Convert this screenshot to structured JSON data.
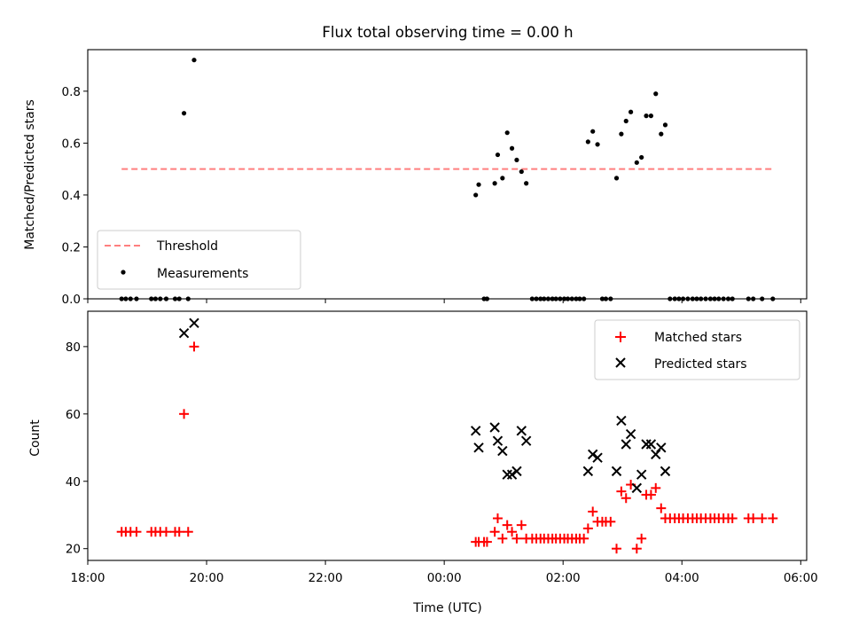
{
  "chart_data": [
    {
      "type": "scatter",
      "title": "Flux total observing time = 0.00 h",
      "ylabel": "Matched/Predicted stars",
      "xlabel": "",
      "xlim": [
        -6,
        6.1
      ],
      "ylim": [
        0,
        0.96
      ],
      "yticks": [
        {
          "value": 0.0,
          "label": "0.0"
        },
        {
          "value": 0.2,
          "label": "0.2"
        },
        {
          "value": 0.4,
          "label": "0.4"
        },
        {
          "value": 0.6,
          "label": "0.6"
        },
        {
          "value": 0.8,
          "label": "0.8"
        }
      ],
      "xticks": [
        -6,
        -4,
        -2,
        0,
        2,
        4,
        6
      ],
      "legend": {
        "position": "lower-left"
      },
      "series": [
        {
          "name": "Threshold",
          "style": "dashed-line",
          "color": "#ff7f7f",
          "x": [
            -5.43,
            5.53
          ],
          "y": [
            0.5,
            0.5
          ]
        },
        {
          "name": "Measurements",
          "style": "dot",
          "color": "#000000",
          "x": [
            -5.43,
            -5.36,
            -5.28,
            -5.18,
            -4.93,
            -4.86,
            -4.78,
            -4.68,
            -4.53,
            -4.46,
            -4.38,
            -4.31,
            -4.21,
            0.53,
            0.58,
            0.67,
            0.72,
            0.85,
            0.9,
            0.98,
            1.06,
            1.14,
            1.22,
            1.3,
            1.38,
            1.48,
            1.55,
            1.62,
            1.68,
            1.75,
            1.82,
            1.88,
            1.95,
            2.02,
            2.08,
            2.15,
            2.22,
            2.28,
            2.35,
            2.42,
            2.5,
            2.58,
            2.66,
            2.72,
            2.8,
            2.9,
            2.98,
            3.06,
            3.14,
            3.24,
            3.32,
            3.4,
            3.48,
            3.56,
            3.65,
            3.72,
            3.8,
            3.88,
            3.95,
            4.02,
            4.1,
            4.18,
            4.25,
            4.32,
            4.4,
            4.48,
            4.55,
            4.62,
            4.7,
            4.78,
            4.85,
            5.12,
            5.2,
            5.35,
            5.53
          ],
          "y": [
            0,
            0,
            0,
            0,
            0,
            0,
            0,
            0,
            0,
            0,
            0.715,
            0,
            0.92,
            0.4,
            0.44,
            0,
            0,
            0.445,
            0.555,
            0.465,
            0.64,
            0.58,
            0.535,
            0.49,
            0.445,
            0,
            0,
            0,
            0,
            0,
            0,
            0,
            0,
            0,
            0,
            0,
            0,
            0,
            0,
            0.605,
            0.645,
            0.595,
            0,
            0,
            0,
            0.465,
            0.635,
            0.685,
            0.72,
            0.525,
            0.545,
            0.705,
            0.705,
            0.79,
            0.635,
            0.67,
            0,
            0,
            0,
            0,
            0,
            0,
            0,
            0,
            0,
            0,
            0,
            0,
            0,
            0,
            0,
            0,
            0,
            0,
            0
          ]
        }
      ]
    },
    {
      "type": "scatter",
      "title": "",
      "ylabel": "Count",
      "xlabel": "Time (UTC)",
      "xlim": [
        -6,
        6.1
      ],
      "ylim": [
        16.5,
        90.5
      ],
      "yticks": [
        {
          "value": 20,
          "label": "20"
        },
        {
          "value": 40,
          "label": "40"
        },
        {
          "value": 60,
          "label": "60"
        },
        {
          "value": 80,
          "label": "80"
        }
      ],
      "xticks": [
        {
          "value": -6,
          "label": "18:00"
        },
        {
          "value": -4,
          "label": "20:00"
        },
        {
          "value": -2,
          "label": "22:00"
        },
        {
          "value": 0,
          "label": "00:00"
        },
        {
          "value": 2,
          "label": "02:00"
        },
        {
          "value": 4,
          "label": "04:00"
        },
        {
          "value": 6,
          "label": "06:00"
        }
      ],
      "legend": {
        "position": "upper-right"
      },
      "series": [
        {
          "name": "Matched stars",
          "marker": "+",
          "color": "#ff0000",
          "x": [
            -5.43,
            -5.36,
            -5.28,
            -5.18,
            -4.93,
            -4.86,
            -4.78,
            -4.68,
            -4.53,
            -4.46,
            -4.38,
            -4.31,
            -4.21,
            0.53,
            0.58,
            0.67,
            0.72,
            0.85,
            0.9,
            0.98,
            1.06,
            1.14,
            1.22,
            1.3,
            1.38,
            1.48,
            1.55,
            1.62,
            1.68,
            1.75,
            1.82,
            1.88,
            1.95,
            2.02,
            2.08,
            2.15,
            2.22,
            2.28,
            2.35,
            2.42,
            2.5,
            2.58,
            2.66,
            2.72,
            2.8,
            2.9,
            2.98,
            3.06,
            3.14,
            3.24,
            3.32,
            3.4,
            3.48,
            3.56,
            3.65,
            3.72,
            3.8,
            3.88,
            3.95,
            4.02,
            4.1,
            4.18,
            4.25,
            4.32,
            4.4,
            4.48,
            4.55,
            4.62,
            4.7,
            4.78,
            4.85,
            5.12,
            5.2,
            5.35,
            5.53
          ],
          "y": [
            25,
            25,
            25,
            25,
            25,
            25,
            25,
            25,
            25,
            25,
            60,
            25,
            80,
            22,
            22,
            22,
            22,
            25,
            29,
            23,
            27,
            25,
            23,
            27,
            23,
            23,
            23,
            23,
            23,
            23,
            23,
            23,
            23,
            23,
            23,
            23,
            23,
            23,
            23,
            26,
            31,
            28,
            28,
            28,
            28,
            20,
            37,
            35,
            39,
            20,
            23,
            36,
            36,
            38,
            32,
            29,
            29,
            29,
            29,
            29,
            29,
            29,
            29,
            29,
            29,
            29,
            29,
            29,
            29,
            29,
            29,
            29,
            29,
            29,
            29
          ]
        },
        {
          "name": "Predicted stars",
          "marker": "x",
          "color": "#000000",
          "x": [
            -4.38,
            -4.21,
            0.53,
            0.58,
            0.85,
            0.9,
            0.98,
            1.06,
            1.14,
            1.22,
            1.3,
            1.38,
            2.42,
            2.5,
            2.58,
            2.9,
            2.98,
            3.06,
            3.14,
            3.24,
            3.32,
            3.4,
            3.48,
            3.56,
            3.65,
            3.72
          ],
          "y": [
            84,
            87,
            55,
            50,
            56,
            52,
            49,
            42,
            42,
            43,
            55,
            52,
            43,
            48,
            47,
            43,
            58,
            51,
            54,
            38,
            42,
            51,
            51,
            48,
            50,
            43
          ]
        }
      ]
    }
  ]
}
